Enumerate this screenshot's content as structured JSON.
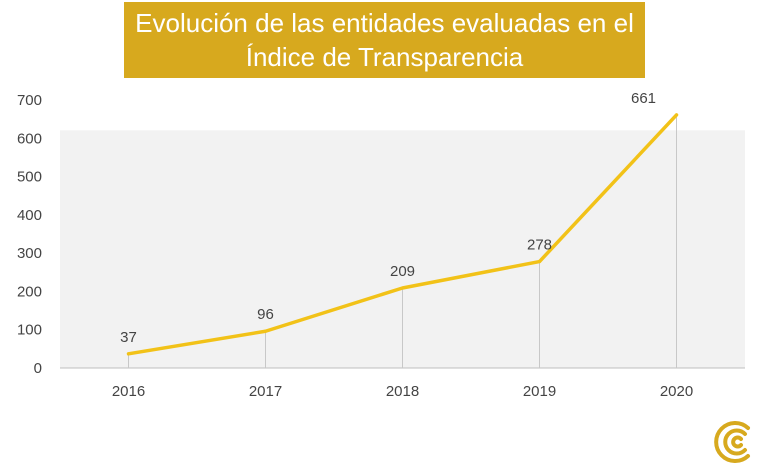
{
  "title": {
    "line1": "Evolución de las entidades evaluadas en el",
    "line2": "Índice de Transparencia"
  },
  "chart_data": {
    "type": "line",
    "categories": [
      "2016",
      "2017",
      "2018",
      "2019",
      "2020"
    ],
    "series": [
      {
        "values": [
          37,
          96,
          209,
          278,
          661
        ]
      }
    ],
    "ylim": [
      0,
      700
    ],
    "yticks": [
      0,
      100,
      200,
      300,
      400,
      500,
      600,
      700
    ],
    "grid": false,
    "data_labels": true,
    "colors": {
      "line": "#f2c218",
      "title_background": "#d7a91e",
      "plot_background": "#f2f2f2",
      "drop_lines": "#c8c8c8"
    }
  },
  "logo": {
    "icon": "c-logo-icon",
    "color": "#d7a91e"
  }
}
